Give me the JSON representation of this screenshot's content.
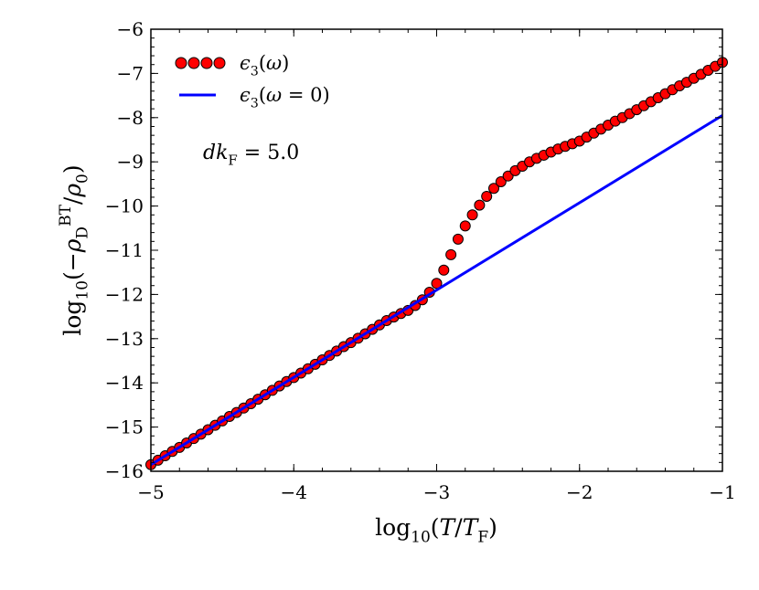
{
  "chart_data": {
    "type": "line",
    "title": "",
    "xlabel": "log10(T/TF)",
    "xlabel_parts": [
      {
        "t": "log"
      },
      {
        "t": "10",
        "sub": true
      },
      {
        "t": "("
      },
      {
        "t": "T",
        "it": true
      },
      {
        "t": "/"
      },
      {
        "t": "T",
        "it": true
      },
      {
        "t": "F",
        "sub": true
      },
      {
        "t": ")"
      }
    ],
    "ylabel": "log10(−ρD^BT/ρ0)",
    "ylabel_parts": [
      {
        "t": "log"
      },
      {
        "t": "10",
        "sub": true
      },
      {
        "t": "(−"
      },
      {
        "t": "ρ",
        "it": true
      },
      {
        "t": "D",
        "sub": true
      },
      {
        "t": "BT",
        "sup": true
      },
      {
        "t": "/"
      },
      {
        "t": "ρ",
        "it": true
      },
      {
        "t": "0",
        "sub": true
      },
      {
        "t": ")"
      }
    ],
    "xlim": [
      -5,
      -1
    ],
    "ylim": [
      -16,
      -6
    ],
    "xticks": [
      -5,
      -4,
      -3,
      -2,
      -1
    ],
    "xtick_labels": [
      "−5",
      "−4",
      "−3",
      "−2",
      "−1"
    ],
    "yticks": [
      -6,
      -7,
      -8,
      -9,
      -10,
      -11,
      -12,
      -13,
      -14,
      -15,
      -16
    ],
    "ytick_labels": [
      "−6",
      "−7",
      "−8",
      "−9",
      "−10",
      "−11",
      "−12",
      "−13",
      "−14",
      "−15",
      "−16"
    ],
    "grid": false,
    "legend_position": "top-left",
    "annotation": "dkF = 5.0",
    "annotation_parts": [
      {
        "t": "dk",
        "it": true
      },
      {
        "t": "F",
        "sub": true
      },
      {
        "t": " = 5.0"
      }
    ],
    "series": [
      {
        "name": "ε3(ω)",
        "name_parts": [
          {
            "t": "ϵ",
            "it": true
          },
          {
            "t": "3",
            "sub": true
          },
          {
            "t": "("
          },
          {
            "t": "ω",
            "it": true
          },
          {
            "t": ")"
          }
        ],
        "style": "markers",
        "color": "#ff0000",
        "edge_color": "#000000",
        "x": [
          -5.0,
          -4.95,
          -4.9,
          -4.85,
          -4.8,
          -4.75,
          -4.7,
          -4.65,
          -4.6,
          -4.55,
          -4.5,
          -4.45,
          -4.4,
          -4.35,
          -4.3,
          -4.25,
          -4.2,
          -4.15,
          -4.1,
          -4.05,
          -4.0,
          -3.95,
          -3.9,
          -3.85,
          -3.8,
          -3.75,
          -3.7,
          -3.65,
          -3.6,
          -3.55,
          -3.5,
          -3.45,
          -3.4,
          -3.35,
          -3.3,
          -3.25,
          -3.2,
          -3.15,
          -3.1,
          -3.05,
          -3.0,
          -2.95,
          -2.9,
          -2.85,
          -2.8,
          -2.75,
          -2.7,
          -2.65,
          -2.6,
          -2.55,
          -2.5,
          -2.45,
          -2.4,
          -2.35,
          -2.3,
          -2.25,
          -2.2,
          -2.15,
          -2.1,
          -2.05,
          -2.0,
          -1.95,
          -1.9,
          -1.85,
          -1.8,
          -1.75,
          -1.7,
          -1.65,
          -1.6,
          -1.55,
          -1.5,
          -1.45,
          -1.4,
          -1.35,
          -1.3,
          -1.25,
          -1.2,
          -1.15,
          -1.1,
          -1.05,
          -1.0
        ],
        "y": [
          -15.85,
          -15.75,
          -15.65,
          -15.55,
          -15.46,
          -15.36,
          -15.26,
          -15.16,
          -15.06,
          -14.96,
          -14.86,
          -14.76,
          -14.67,
          -14.57,
          -14.47,
          -14.37,
          -14.27,
          -14.17,
          -14.07,
          -13.97,
          -13.88,
          -13.78,
          -13.68,
          -13.58,
          -13.48,
          -13.38,
          -13.28,
          -13.18,
          -13.09,
          -12.99,
          -12.89,
          -12.79,
          -12.69,
          -12.59,
          -12.51,
          -12.43,
          -12.36,
          -12.25,
          -12.12,
          -11.95,
          -11.75,
          -11.45,
          -11.1,
          -10.75,
          -10.45,
          -10.2,
          -9.98,
          -9.78,
          -9.6,
          -9.45,
          -9.32,
          -9.2,
          -9.1,
          -9.0,
          -8.92,
          -8.85,
          -8.78,
          -8.71,
          -8.65,
          -8.59,
          -8.53,
          -8.44,
          -8.35,
          -8.26,
          -8.17,
          -8.08,
          -8.0,
          -7.91,
          -7.82,
          -7.73,
          -7.64,
          -7.55,
          -7.46,
          -7.37,
          -7.28,
          -7.2,
          -7.11,
          -7.02,
          -6.93,
          -6.84,
          -6.75
        ]
      },
      {
        "name": "ε3(ω = 0)",
        "name_parts": [
          {
            "t": "ϵ",
            "it": true
          },
          {
            "t": "3",
            "sub": true
          },
          {
            "t": "("
          },
          {
            "t": "ω",
            "it": true
          },
          {
            "t": " = 0)"
          }
        ],
        "style": "line",
        "color": "#0000ff",
        "x": [
          -5,
          -1
        ],
        "y": [
          -15.85,
          -7.95
        ]
      }
    ]
  }
}
